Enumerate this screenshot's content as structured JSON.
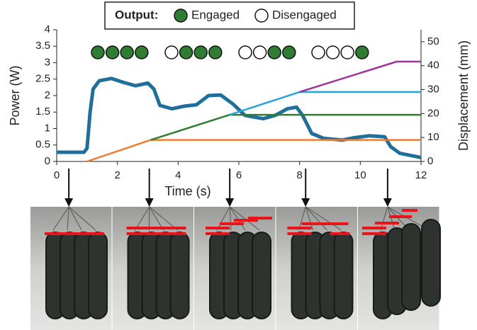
{
  "chart_data": {
    "type": "line",
    "legend": {
      "title": "Output:",
      "engaged": "Engaged",
      "disengaged": "Disengaged",
      "engaged_color": "#2e7d32"
    },
    "xlabel": "Time (s)",
    "ylabel": "Power (W)",
    "y2label": "Displacement (mm)",
    "xlim": [
      0,
      12
    ],
    "xticks": [
      0,
      2,
      4,
      6,
      8,
      10,
      12
    ],
    "ylim": [
      0,
      4
    ],
    "yticks": [
      0,
      0.5,
      1,
      1.5,
      2,
      2.5,
      3,
      3.5,
      4
    ],
    "y2lim": [
      0,
      55
    ],
    "y2ticks": [
      0,
      10,
      20,
      30,
      40,
      50
    ],
    "output_states": [
      [
        true,
        true,
        true,
        true
      ],
      [
        false,
        true,
        true,
        true
      ],
      [
        false,
        false,
        true,
        true
      ],
      [
        false,
        false,
        false,
        true
      ]
    ],
    "snapshot_times": [
      0.4,
      3.05,
      5.7,
      8.2,
      10.9
    ],
    "series": [
      {
        "color": "#1f6f9a",
        "x": [
          0,
          0.5,
          0.9,
          1.0,
          1.1,
          1.2,
          1.4,
          1.8,
          2.2,
          2.6,
          3.0,
          3.2,
          3.4,
          3.8,
          4.2,
          4.6,
          5.0,
          5.4,
          5.8,
          6.2,
          6.8,
          7.2,
          7.6,
          7.9,
          8.1,
          8.4,
          8.8,
          9.4,
          9.8,
          10.3,
          10.8,
          11.0,
          11.3,
          12
        ],
        "values": [
          0.28,
          0.28,
          0.28,
          0.4,
          1.5,
          2.2,
          2.45,
          2.52,
          2.4,
          2.3,
          2.38,
          2.2,
          1.7,
          1.6,
          1.68,
          1.72,
          2.0,
          2.02,
          1.75,
          1.4,
          1.3,
          1.4,
          1.6,
          1.65,
          1.4,
          0.85,
          0.7,
          0.65,
          0.72,
          0.78,
          0.75,
          0.45,
          0.25,
          0.12
        ]
      },
      {
        "color": "#ed7d31",
        "axis": "y2",
        "x": [
          1.0,
          3.1,
          12
        ],
        "values": [
          0,
          9,
          9
        ]
      },
      {
        "color": "#2e7d32",
        "axis": "y2",
        "x": [
          3.1,
          5.7,
          12
        ],
        "values": [
          9,
          19.5,
          19.5
        ]
      },
      {
        "color": "#29a3db",
        "axis": "y2",
        "x": [
          5.7,
          8.0,
          12
        ],
        "values": [
          19.5,
          29,
          29
        ]
      },
      {
        "color": "#a0309a",
        "axis": "y2",
        "x": [
          8.0,
          11.2,
          12
        ],
        "values": [
          29,
          41.7,
          41.7
        ]
      }
    ]
  }
}
